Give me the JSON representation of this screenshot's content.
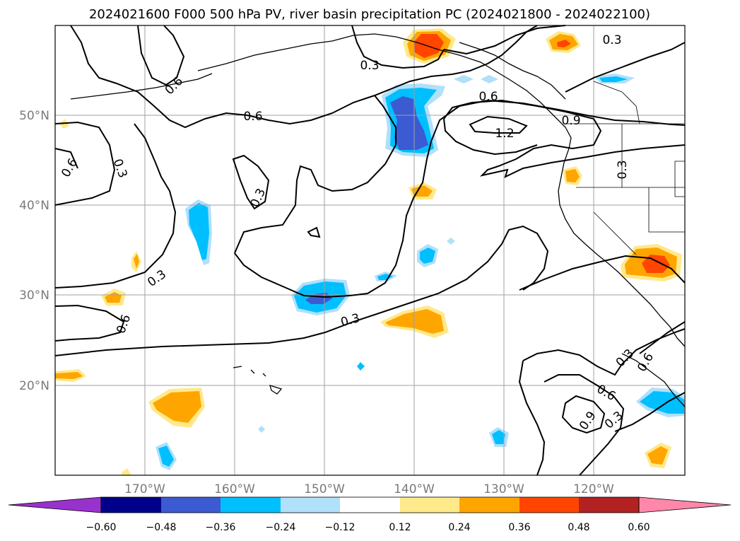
{
  "title": "2024021600 F000 500 hPa PV, river basin precipitation PC (2024021800 - 2024022100)",
  "lat_labels": [
    "50°N",
    "40°N",
    "30°N",
    "20°N"
  ],
  "lon_labels": [
    "170°W",
    "160°W",
    "150°W",
    "140°W",
    "130°W",
    "120°W"
  ],
  "contour_labels": [
    "0.3",
    "0.3",
    "0.6",
    "0.9",
    "1.2",
    "0.6",
    "0.3",
    "0.6",
    "0.3",
    "0.3",
    "0.6",
    "0.3",
    "0.6",
    "0.3",
    "0.6",
    "0.9",
    "0.3",
    "0.6",
    "0.3"
  ],
  "colorbar": {
    "tick_labels": [
      "−0.60",
      "−0.48",
      "−0.36",
      "−0.24",
      "−0.12",
      "0.12",
      "0.24",
      "0.36",
      "0.48",
      "0.60"
    ],
    "colors": [
      "#9932cc",
      "#00008b",
      "#3c5ad2",
      "#00bfff",
      "#b0e0fa",
      "#ffffff",
      "#ffe98a",
      "#ffa500",
      "#ff4500",
      "#b22222",
      "#ff88aa"
    ]
  },
  "colors": {
    "pos_light": "#ffe98a",
    "pos_mid": "#ffa500",
    "pos_strong": "#ff4500",
    "neg_light": "#b0e0fa",
    "neg_mid": "#00bfff",
    "neg_strong": "#3c5ad2"
  }
}
